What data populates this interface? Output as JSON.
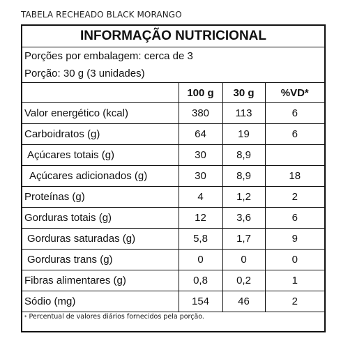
{
  "heading": "TABELA RECHEADO BLACK MORANGO",
  "title": "INFORMAÇÃO NUTRICIONAL",
  "servings_line": "Porções por embalagem: cerca de 3",
  "portion_line": "Porção: 30 g (3 unidades)",
  "columns": [
    "100 g",
    "30 g",
    "%VD*"
  ],
  "rows": [
    {
      "label": "Valor energético (kcal)",
      "c1": "380",
      "c2": "113",
      "vd": "6"
    },
    {
      "label": "Carboidratos (g)",
      "c1": "64",
      "c2": "19",
      "vd": "6"
    },
    {
      "label": "Açúcares totais (g)",
      "c1": "30",
      "c2": "8,9",
      "vd": ""
    },
    {
      "label": "Açúcares adicionados (g)",
      "c1": "30",
      "c2": "8,9",
      "vd": "18"
    },
    {
      "label": "Proteínas (g)",
      "c1": "4",
      "c2": "1,2",
      "vd": "2"
    },
    {
      "label": "Gorduras totais (g)",
      "c1": "12",
      "c2": "3,6",
      "vd": "6"
    },
    {
      "label": "Gorduras saturadas (g)",
      "c1": "5,8",
      "c2": "1,7",
      "vd": "9"
    },
    {
      "label": "Gorduras trans (g)",
      "c1": "0",
      "c2": "0",
      "vd": "0"
    },
    {
      "label": "Fibras alimentares (g)",
      "c1": "0,8",
      "c2": "0,2",
      "vd": "1"
    },
    {
      "label": "Sódio (mg)",
      "c1": "154",
      "c2": "46",
      "vd": "2"
    }
  ],
  "footnote_mark": "*",
  "footnote": "Percentual de valores diários fornecidos pela porção."
}
